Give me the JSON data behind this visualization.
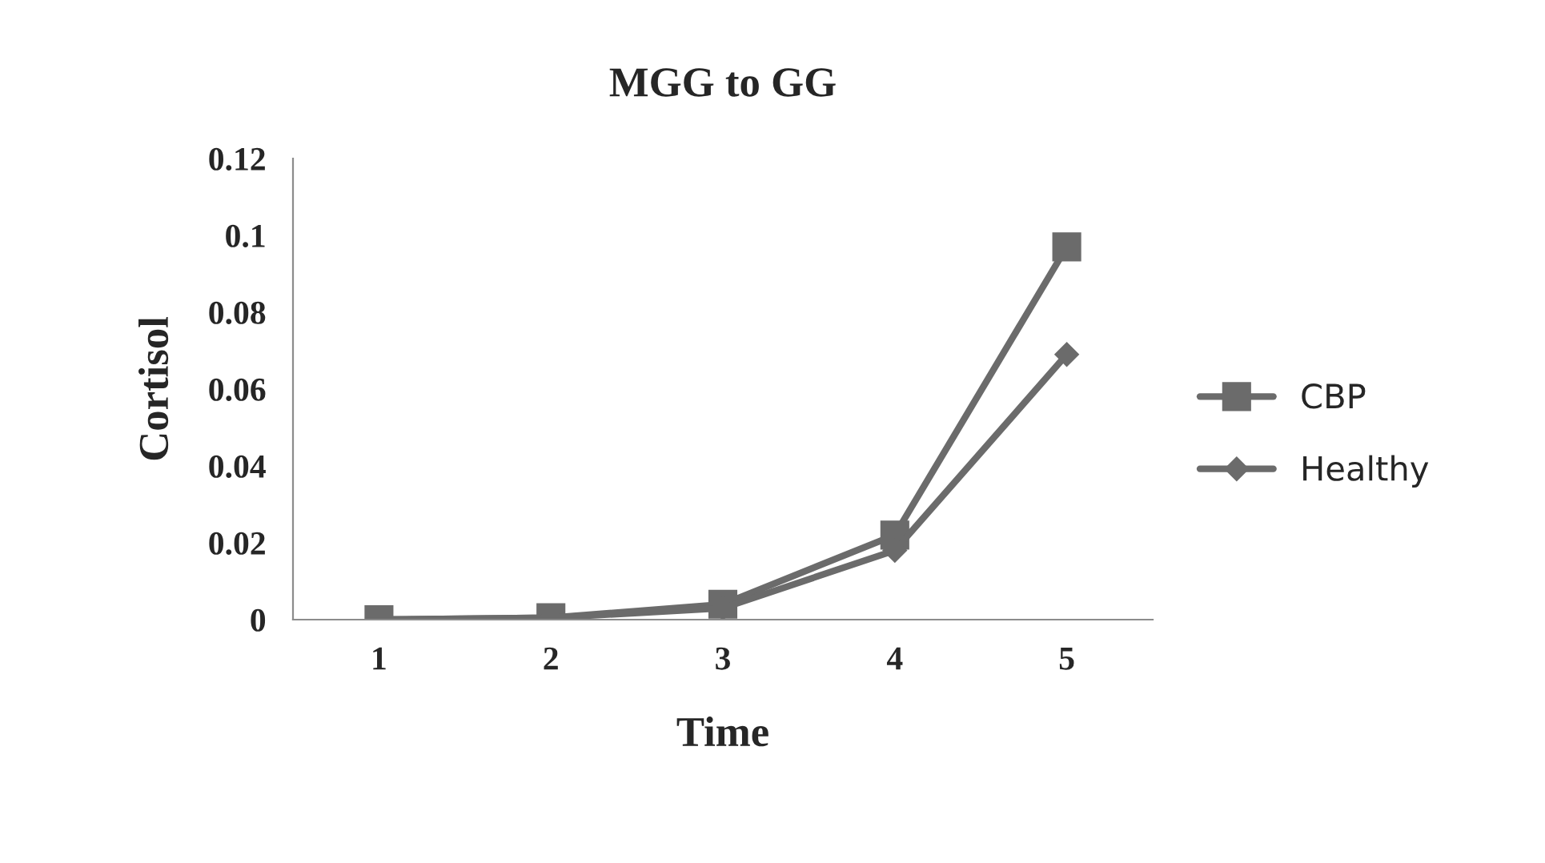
{
  "chart_data": {
    "type": "line",
    "title": "MGG to GG",
    "xlabel": "Time",
    "ylabel": "Cortisol",
    "categories": [
      "1",
      "2",
      "3",
      "4",
      "5"
    ],
    "series": [
      {
        "name": "CBP",
        "color": "#6b6b6b",
        "marker": "square",
        "values": [
          0,
          0.0005,
          0.004,
          0.022,
          0.097
        ]
      },
      {
        "name": "Healthy",
        "color": "#6b6b6b",
        "marker": "diamond",
        "values": [
          0,
          0.0005,
          0.003,
          0.018,
          0.069
        ]
      }
    ],
    "ylim": [
      0,
      0.12
    ],
    "yticks": [
      0,
      0.02,
      0.04,
      0.06,
      0.08,
      0.1,
      0.12
    ],
    "grid": false,
    "legend": "right"
  }
}
